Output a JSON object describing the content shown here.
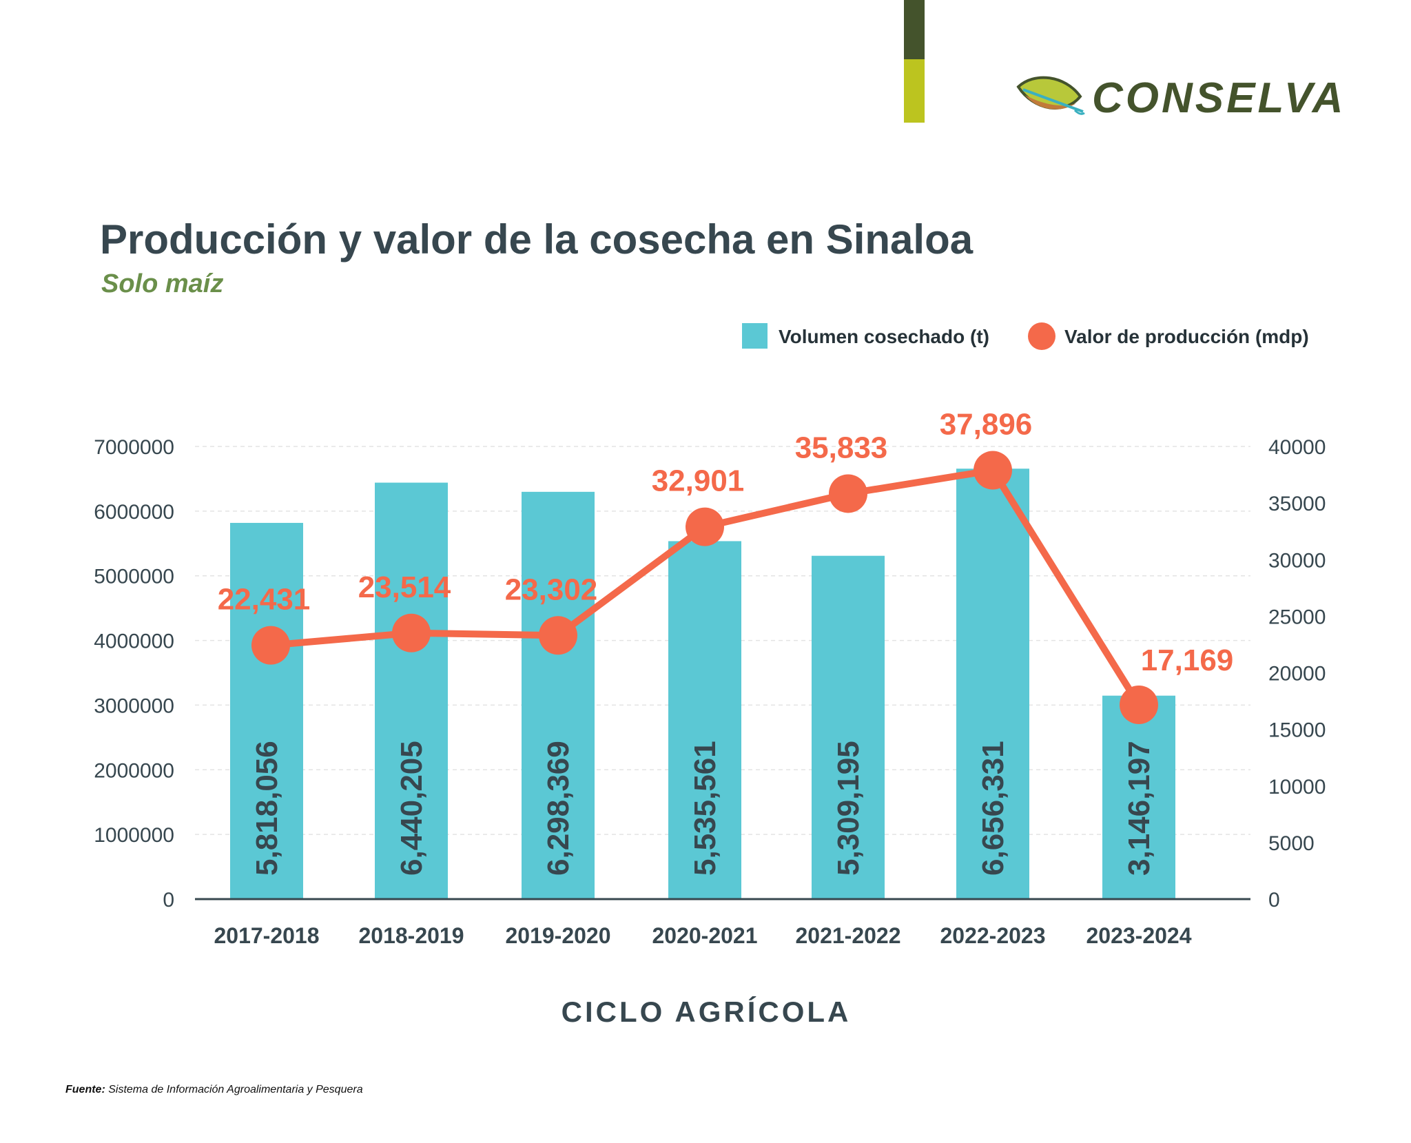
{
  "brand": {
    "name": "CONSELVA",
    "dark_color": "#44532c",
    "lime_color": "#bcc41f"
  },
  "title": "Producción y valor de la cosecha en Sinaloa",
  "subtitle": "Solo maíz",
  "footer": {
    "label": "Fuente:",
    "text": "Sistema de Información Agroalimentaria y Pesquera"
  },
  "chart_data": {
    "type": "bar+line",
    "xlabel": "CICLO AGRÍCOLA",
    "categories": [
      "2017-2018",
      "2018-2019",
      "2019-2020",
      "2020-2021",
      "2021-2022",
      "2022-2023",
      "2023-2024"
    ],
    "legend_placement": "top-right",
    "grid": true,
    "series": [
      {
        "name": "Volumen cosechado (t)",
        "type": "bar",
        "axis": "left",
        "color": "#5bc8d4",
        "values": [
          5818056,
          6440205,
          6298369,
          5535561,
          5309195,
          6656331,
          3146197
        ],
        "labels": [
          "5,818,056",
          "6,440,205",
          "6,298,369",
          "5,535,561",
          "5,309,195",
          "6,656,331",
          "3,146,197"
        ]
      },
      {
        "name": "Valor de producción (mdp)",
        "type": "line",
        "axis": "right",
        "color": "#f4694a",
        "values": [
          22431,
          23514,
          23302,
          32901,
          35833,
          37896,
          17169
        ],
        "labels": [
          "22,431",
          "23,514",
          "23,302",
          "32,901",
          "35,833",
          "37,896",
          "17,169"
        ]
      }
    ],
    "left_axis": {
      "range": [
        0,
        7000000
      ],
      "ticks": [
        "0",
        "1000000",
        "2000000",
        "3000000",
        "4000000",
        "5000000",
        "6000000",
        "7000000"
      ]
    },
    "right_axis": {
      "range": [
        0,
        40000
      ],
      "ticks": [
        "0",
        "5000",
        "10000",
        "15000",
        "20000",
        "25000",
        "30000",
        "35000",
        "40000"
      ]
    }
  }
}
